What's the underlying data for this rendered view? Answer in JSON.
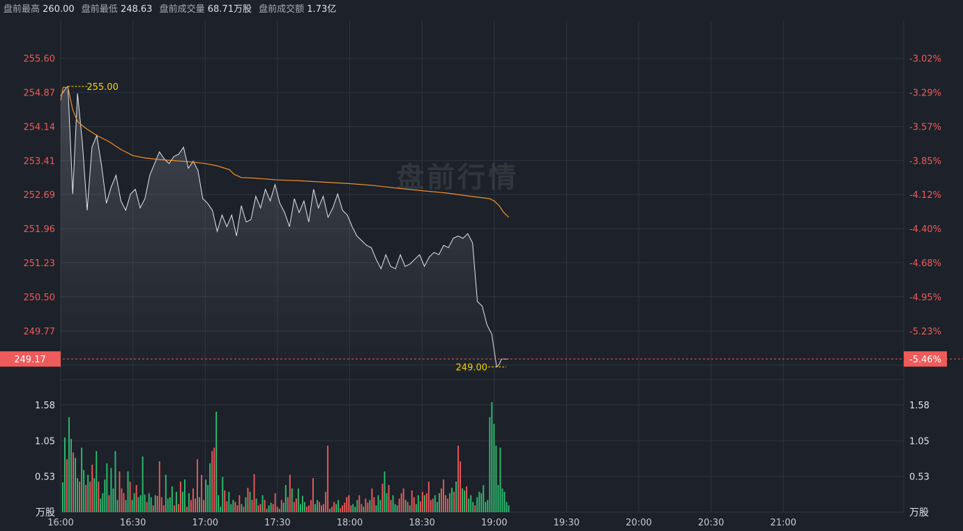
{
  "header": {
    "high_label": "盘前最高",
    "high_value": "260.00",
    "low_label": "盘前最低",
    "low_value": "248.63",
    "volume_label": "盘前成交量",
    "volume_value": "68.71万股",
    "amount_label": "盘前成交额",
    "amount_value": "1.73亿"
  },
  "watermark": "盘前行情",
  "colors": {
    "background": "#1d2129",
    "grid": "#2f3540",
    "price_line": "#e6e8ec",
    "avg_line": "#f0922f",
    "up": "#ef5b5b",
    "down": "#2fbf71",
    "marker": "#f5d400",
    "current_price_bg": "#ef5b5b"
  },
  "chart_data": {
    "type": "line",
    "title": "",
    "x_ticks": [
      "16:00",
      "16:30",
      "17:00",
      "17:30",
      "18:00",
      "18:30",
      "19:00",
      "19:30",
      "20:00",
      "20:30",
      "21:00"
    ],
    "price_axis_left": [
      "255.60",
      "254.87",
      "254.14",
      "253.41",
      "252.69",
      "251.96",
      "251.23",
      "250.50",
      "249.77"
    ],
    "price_axis_right": [
      "-3.02%",
      "-3.29%",
      "-3.57%",
      "-3.85%",
      "-4.12%",
      "-4.40%",
      "-4.68%",
      "-4.95%",
      "-5.23%"
    ],
    "ylim": [
      248.8,
      256.4
    ],
    "current_price": "249.17",
    "current_change": "-5.46%",
    "max_marker": {
      "time": "16:03",
      "value": 255.0,
      "label": "255.00"
    },
    "min_marker": {
      "time": "19:05",
      "value": 249.0,
      "label": "249.00"
    },
    "price_series": {
      "times": [
        "16:00",
        "16:02",
        "16:03",
        "16:05",
        "16:07",
        "16:09",
        "16:11",
        "16:13",
        "16:15",
        "16:17",
        "16:19",
        "16:21",
        "16:23",
        "16:25",
        "16:27",
        "16:29",
        "16:31",
        "16:33",
        "16:35",
        "16:37",
        "16:39",
        "16:41",
        "16:43",
        "16:45",
        "16:47",
        "16:49",
        "16:51",
        "16:53",
        "16:55",
        "16:57",
        "16:59",
        "17:01",
        "17:03",
        "17:05",
        "17:07",
        "17:09",
        "17:11",
        "17:13",
        "17:15",
        "17:17",
        "17:19",
        "17:21",
        "17:23",
        "17:25",
        "17:27",
        "17:29",
        "17:31",
        "17:33",
        "17:35",
        "17:37",
        "17:39",
        "17:41",
        "17:43",
        "17:45",
        "17:47",
        "17:49",
        "17:51",
        "17:53",
        "17:55",
        "17:57",
        "17:59",
        "18:01",
        "18:03",
        "18:05",
        "18:07",
        "18:09",
        "18:11",
        "18:13",
        "18:15",
        "18:17",
        "18:19",
        "18:21",
        "18:23",
        "18:25",
        "18:27",
        "18:29",
        "18:31",
        "18:33",
        "18:35",
        "18:37",
        "18:39",
        "18:41",
        "18:43",
        "18:45",
        "18:47",
        "18:49",
        "18:51",
        "18:53",
        "18:55",
        "18:57",
        "18:59",
        "19:01",
        "19:02",
        "19:03",
        "19:04",
        "19:05",
        "19:06"
      ],
      "values": [
        254.8,
        254.95,
        255.0,
        252.7,
        254.85,
        253.8,
        252.35,
        253.7,
        253.95,
        253.3,
        252.5,
        252.85,
        253.1,
        252.55,
        252.35,
        252.7,
        252.8,
        252.4,
        252.6,
        253.1,
        253.35,
        253.6,
        253.45,
        253.35,
        253.5,
        253.55,
        253.7,
        253.25,
        253.4,
        253.2,
        252.6,
        252.5,
        252.35,
        251.9,
        252.25,
        252.0,
        252.25,
        251.8,
        252.45,
        252.1,
        252.15,
        252.65,
        252.4,
        252.8,
        252.55,
        252.9,
        252.5,
        252.3,
        252.0,
        252.6,
        252.3,
        252.55,
        252.1,
        252.8,
        252.4,
        252.65,
        252.2,
        252.4,
        252.7,
        252.35,
        252.25,
        252.0,
        251.8,
        251.7,
        251.6,
        251.55,
        251.3,
        251.1,
        251.4,
        251.15,
        251.1,
        251.4,
        251.15,
        251.2,
        251.3,
        251.4,
        251.15,
        251.35,
        251.45,
        251.4,
        251.6,
        251.55,
        251.75,
        251.8,
        251.75,
        251.85,
        251.65,
        250.4,
        250.3,
        249.9,
        249.7,
        249.0,
        249.05,
        249.17,
        249.17,
        249.17,
        249.17
      ]
    },
    "avg_series": {
      "times": [
        "16:00",
        "16:01",
        "16:03",
        "16:05",
        "16:07",
        "16:10",
        "16:15",
        "16:20",
        "16:25",
        "16:30",
        "16:35",
        "16:40",
        "16:45",
        "16:50",
        "16:55",
        "17:00",
        "17:05",
        "17:10",
        "17:12",
        "17:15",
        "17:20",
        "17:30",
        "17:40",
        "17:50",
        "18:00",
        "18:10",
        "18:20",
        "18:30",
        "18:40",
        "18:50",
        "18:58",
        "19:00",
        "19:02",
        "19:04",
        "19:06"
      ],
      "values": [
        254.7,
        254.98,
        254.98,
        254.5,
        254.25,
        254.12,
        253.95,
        253.82,
        253.65,
        253.52,
        253.47,
        253.44,
        253.42,
        253.4,
        253.38,
        253.35,
        253.3,
        253.22,
        253.12,
        253.05,
        253.04,
        253.0,
        252.98,
        252.95,
        252.92,
        252.88,
        252.82,
        252.77,
        252.72,
        252.65,
        252.6,
        252.55,
        252.45,
        252.3,
        252.2
      ]
    },
    "volume": {
      "unit": "万股",
      "axis_ticks": [
        "1.58",
        "1.05",
        "0.53"
      ],
      "ylim": [
        0,
        1.95
      ],
      "directions": "ddudduddudduduudduddddudddduuuddudduddddudduduuuudddduduudduduuuuduuddduudddduuddduuudududuuduuduudduuududduuduudddduuuudduuuuuduudduuuuuuddduuduuduudddudduuddduuududuudduuduuuuddduuuudduduuddudddudd",
      "values": [
        0.44,
        1.1,
        0.78,
        1.4,
        1.08,
        0.88,
        0.8,
        0.5,
        0.45,
        0.95,
        0.62,
        0.4,
        0.55,
        0.45,
        0.7,
        0.5,
        0.9,
        0.45,
        0.2,
        0.28,
        0.48,
        0.72,
        0.25,
        0.65,
        0.35,
        0.9,
        0.18,
        0.6,
        0.35,
        0.28,
        0.18,
        0.6,
        0.45,
        0.18,
        0.28,
        0.4,
        0.22,
        0.25,
        0.82,
        0.26,
        0.15,
        0.28,
        0.22,
        0.1,
        0.25,
        0.24,
        0.75,
        0.22,
        0.1,
        0.55,
        0.2,
        0.22,
        0.38,
        0.1,
        0.3,
        0.12,
        0.45,
        0.3,
        0.48,
        0.08,
        0.28,
        0.18,
        0.35,
        0.2,
        0.78,
        0.22,
        0.55,
        0.18,
        0.48,
        0.4,
        0.72,
        0.9,
        0.95,
        1.48,
        0.25,
        0.08,
        0.52,
        0.32,
        0.16,
        0.3,
        0.12,
        0.18,
        0.15,
        0.1,
        0.25,
        0.12,
        0.08,
        0.22,
        0.36,
        0.3,
        0.18,
        0.56,
        0.2,
        0.1,
        0.12,
        0.25,
        0.18,
        0.05,
        0.1,
        0.14,
        0.12,
        0.28,
        0.08,
        0.05,
        0.18,
        0.14,
        0.4,
        0.22,
        0.55,
        0.35,
        0.15,
        0.2,
        0.35,
        0.12,
        0.24,
        0.15,
        0.08,
        0.1,
        0.18,
        0.5,
        0.12,
        0.18,
        0.15,
        0.1,
        0.12,
        0.3,
        0.98,
        0.05,
        0.08,
        0.15,
        0.12,
        0.18,
        0.06,
        0.1,
        0.14,
        0.22,
        0.25,
        0.1,
        0.12,
        0.08,
        0.18,
        0.25,
        0.12,
        0.08,
        0.2,
        0.14,
        0.18,
        0.35,
        0.22,
        0.1,
        0.25,
        0.18,
        0.42,
        0.6,
        0.28,
        0.4,
        0.18,
        0.25,
        0.12,
        0.1,
        0.2,
        0.28,
        0.35,
        0.18,
        0.15,
        0.1,
        0.32,
        0.22,
        0.12,
        0.25,
        0.16,
        0.3,
        0.25,
        0.28,
        0.45,
        0.18,
        0.2,
        0.25,
        0.15,
        0.28,
        0.35,
        0.48,
        0.25,
        0.2,
        0.28,
        0.36,
        0.3,
        0.45,
        0.98,
        0.75,
        0.35,
        0.32,
        0.38,
        0.2,
        0.25,
        0.15,
        0.1,
        0.22,
        0.3,
        0.28,
        0.4,
        0.15,
        0.18,
        1.4,
        1.62,
        1.3,
        0.98,
        0.4,
        0.95,
        0.35,
        0.3,
        0.15,
        0.1
      ]
    },
    "grid": true
  }
}
